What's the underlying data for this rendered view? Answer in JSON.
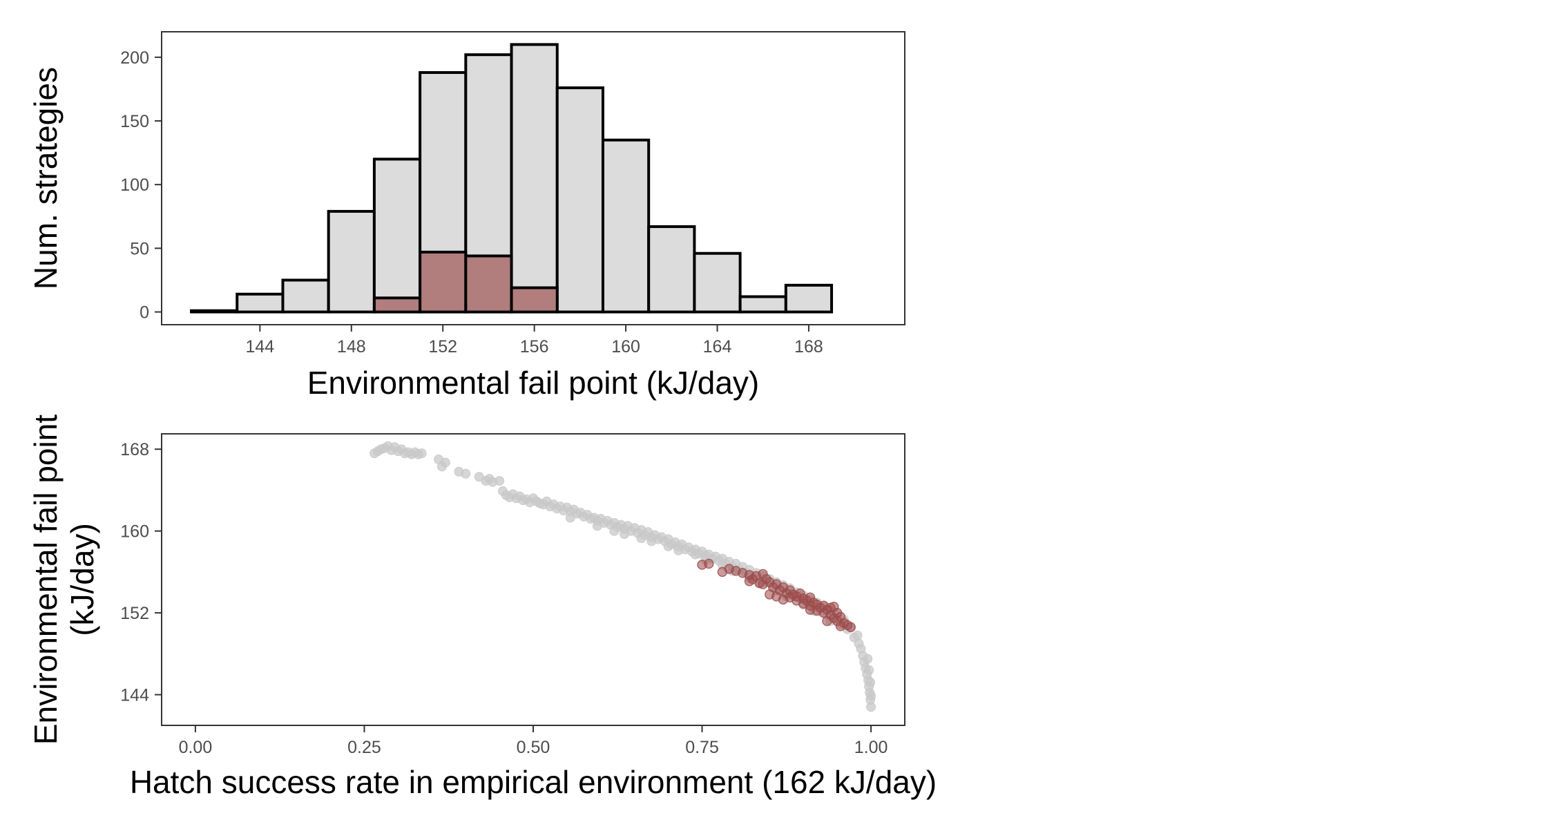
{
  "colors": {
    "bar_fill": "#dcdcdc",
    "bar_outline": "#000000",
    "highlight": "#b17d7d",
    "scatter_grey": "#c8c8c8",
    "scatter_red": "#9e4a4a",
    "panel_border": "#333333"
  },
  "chart_data": [
    {
      "type": "bar",
      "subtype": "histogram",
      "xlabel": "Environmental fail point (kJ/day)",
      "ylabel": "Num. strategies",
      "xlim": [
        139.7,
        172.2
      ],
      "ylim": [
        -10,
        220
      ],
      "bin_width": 2,
      "bin_edges": [
        141,
        143,
        145,
        147,
        149,
        151,
        153,
        155,
        157,
        159,
        161,
        163,
        165,
        167,
        169
      ],
      "series": [
        {
          "values": [
            1,
            14,
            25,
            79,
            120,
            188,
            202,
            210,
            176,
            135,
            67,
            46,
            12,
            21
          ]
        },
        {
          "values": [
            0,
            0,
            0,
            0,
            11,
            47,
            44,
            19,
            0,
            0,
            0,
            0,
            0,
            0
          ]
        }
      ],
      "xticks": [
        144,
        148,
        152,
        156,
        160,
        164,
        168
      ],
      "yticks": [
        0,
        50,
        100,
        150,
        200
      ],
      "grid": false
    },
    {
      "type": "scatter",
      "xlabel": "Hatch success rate in empirical environment (162 kJ/day)",
      "ylabel": "Environmental fail point\n(kJ/day)",
      "xlim": [
        -0.05,
        1.05
      ],
      "ylim": [
        141.0,
        169.5
      ],
      "xticks": [
        "0.00",
        "0.25",
        "0.50",
        "0.75",
        "1.00"
      ],
      "yticks": [
        144,
        152,
        160,
        168
      ],
      "grid": false,
      "series": [
        {
          "points": [
            [
              0.265,
              167.6
            ],
            [
              0.27,
              167.8
            ],
            [
              0.275,
              168.0
            ],
            [
              0.28,
              168.1
            ],
            [
              0.285,
              168.3
            ],
            [
              0.29,
              167.9
            ],
            [
              0.295,
              168.2
            ],
            [
              0.3,
              167.8
            ],
            [
              0.305,
              168.0
            ],
            [
              0.31,
              167.6
            ],
            [
              0.315,
              167.7
            ],
            [
              0.32,
              167.5
            ],
            [
              0.325,
              167.7
            ],
            [
              0.33,
              167.5
            ],
            [
              0.335,
              167.6
            ],
            [
              0.36,
              167.0
            ],
            [
              0.37,
              166.7
            ],
            [
              0.365,
              166.3
            ],
            [
              0.39,
              165.8
            ],
            [
              0.4,
              165.6
            ],
            [
              0.42,
              165.3
            ],
            [
              0.43,
              164.9
            ],
            [
              0.435,
              165.1
            ],
            [
              0.44,
              164.8
            ],
            [
              0.45,
              164.9
            ],
            [
              0.455,
              163.9
            ],
            [
              0.46,
              163.5
            ],
            [
              0.465,
              163.3
            ],
            [
              0.47,
              163.6
            ],
            [
              0.475,
              163.2
            ],
            [
              0.48,
              163.4
            ],
            [
              0.485,
              163.0
            ],
            [
              0.49,
              163.1
            ],
            [
              0.495,
              162.8
            ],
            [
              0.5,
              163.2
            ],
            [
              0.505,
              162.9
            ],
            [
              0.51,
              162.7
            ],
            [
              0.515,
              162.6
            ],
            [
              0.52,
              162.9
            ],
            [
              0.525,
              162.4
            ],
            [
              0.53,
              162.6
            ],
            [
              0.535,
              162.2
            ],
            [
              0.54,
              162.4
            ],
            [
              0.545,
              162.0
            ],
            [
              0.55,
              162.3
            ],
            [
              0.555,
              161.9
            ],
            [
              0.56,
              162.1
            ],
            [
              0.565,
              161.7
            ],
            [
              0.57,
              161.8
            ],
            [
              0.575,
              161.4
            ],
            [
              0.58,
              161.6
            ],
            [
              0.585,
              161.2
            ],
            [
              0.59,
              161.3
            ],
            [
              0.595,
              161.0
            ],
            [
              0.6,
              161.2
            ],
            [
              0.605,
              160.8
            ],
            [
              0.61,
              161.0
            ],
            [
              0.615,
              160.6
            ],
            [
              0.62,
              160.8
            ],
            [
              0.625,
              160.4
            ],
            [
              0.63,
              160.6
            ],
            [
              0.635,
              160.2
            ],
            [
              0.64,
              160.5
            ],
            [
              0.645,
              160.0
            ],
            [
              0.65,
              160.3
            ],
            [
              0.655,
              159.8
            ],
            [
              0.66,
              160.1
            ],
            [
              0.665,
              159.6
            ],
            [
              0.67,
              159.9
            ],
            [
              0.675,
              159.4
            ],
            [
              0.68,
              159.6
            ],
            [
              0.685,
              159.2
            ],
            [
              0.69,
              159.4
            ],
            [
              0.695,
              159.0
            ],
            [
              0.7,
              159.2
            ],
            [
              0.705,
              158.7
            ],
            [
              0.71,
              158.9
            ],
            [
              0.715,
              158.5
            ],
            [
              0.72,
              158.7
            ],
            [
              0.725,
              158.2
            ],
            [
              0.73,
              158.4
            ],
            [
              0.735,
              158.0
            ],
            [
              0.74,
              158.2
            ],
            [
              0.745,
              157.8
            ],
            [
              0.75,
              158.0
            ],
            [
              0.755,
              157.6
            ],
            [
              0.76,
              157.7
            ],
            [
              0.765,
              157.3
            ],
            [
              0.77,
              157.5
            ],
            [
              0.775,
              157.1
            ],
            [
              0.78,
              157.3
            ],
            [
              0.785,
              156.8
            ],
            [
              0.79,
              157.0
            ],
            [
              0.795,
              156.5
            ],
            [
              0.8,
              156.8
            ],
            [
              0.805,
              156.2
            ],
            [
              0.81,
              156.5
            ],
            [
              0.815,
              155.9
            ],
            [
              0.82,
              156.2
            ],
            [
              0.825,
              155.6
            ],
            [
              0.83,
              155.9
            ],
            [
              0.835,
              155.3
            ],
            [
              0.84,
              155.6
            ],
            [
              0.845,
              155.0
            ],
            [
              0.85,
              155.3
            ],
            [
              0.855,
              154.7
            ],
            [
              0.86,
              155.0
            ],
            [
              0.865,
              154.4
            ],
            [
              0.87,
              154.7
            ],
            [
              0.875,
              154.0
            ],
            [
              0.88,
              154.4
            ],
            [
              0.885,
              153.7
            ],
            [
              0.89,
              154.0
            ],
            [
              0.895,
              153.4
            ],
            [
              0.9,
              153.7
            ],
            [
              0.905,
              153.0
            ],
            [
              0.91,
              153.3
            ],
            [
              0.915,
              152.6
            ],
            [
              0.92,
              153.0
            ],
            [
              0.925,
              152.2
            ],
            [
              0.93,
              152.6
            ],
            [
              0.935,
              151.8
            ],
            [
              0.94,
              152.2
            ],
            [
              0.945,
              151.4
            ],
            [
              0.95,
              151.8
            ],
            [
              0.955,
              150.9
            ],
            [
              0.96,
              151.3
            ],
            [
              0.965,
              150.4
            ],
            [
              0.97,
              150.6
            ],
            [
              0.975,
              149.6
            ],
            [
              0.98,
              149.8
            ],
            [
              0.982,
              149.0
            ],
            [
              0.985,
              148.5
            ],
            [
              0.988,
              147.8
            ],
            [
              0.99,
              147.2
            ],
            [
              0.992,
              146.6
            ],
            [
              0.994,
              146.0
            ],
            [
              0.996,
              145.4
            ],
            [
              0.997,
              144.8
            ],
            [
              0.998,
              144.2
            ],
            [
              0.999,
              143.5
            ],
            [
              1.0,
              142.8
            ],
            [
              1.0,
              143.9
            ],
            [
              0.999,
              145.2
            ],
            [
              0.997,
              146.4
            ],
            [
              0.995,
              147.5
            ],
            [
              0.62,
              160.0
            ],
            [
              0.66,
              159.3
            ],
            [
              0.7,
              158.5
            ],
            [
              0.74,
              157.7
            ],
            [
              0.78,
              156.7
            ],
            [
              0.82,
              155.4
            ],
            [
              0.86,
              154.2
            ],
            [
              0.9,
              152.8
            ],
            [
              0.94,
              151.2
            ],
            [
              0.555,
              161.3
            ],
            [
              0.595,
              160.5
            ],
            [
              0.635,
              159.7
            ],
            [
              0.675,
              159.0
            ],
            [
              0.715,
              158.1
            ],
            [
              0.755,
              157.2
            ],
            [
              0.795,
              156.1
            ],
            [
              0.835,
              154.9
            ],
            [
              0.875,
              153.6
            ],
            [
              0.915,
              152.2
            ]
          ]
        },
        {
          "points": [
            [
              0.75,
              156.7
            ],
            [
              0.76,
              156.8
            ],
            [
              0.78,
              156.0
            ],
            [
              0.79,
              156.3
            ],
            [
              0.8,
              156.1
            ],
            [
              0.81,
              155.9
            ],
            [
              0.82,
              155.7
            ],
            [
              0.82,
              155.1
            ],
            [
              0.825,
              155.3
            ],
            [
              0.83,
              155.6
            ],
            [
              0.835,
              154.9
            ],
            [
              0.84,
              155.8
            ],
            [
              0.84,
              154.8
            ],
            [
              0.845,
              155.3
            ],
            [
              0.85,
              155.0
            ],
            [
              0.855,
              154.5
            ],
            [
              0.86,
              154.8
            ],
            [
              0.865,
              154.2
            ],
            [
              0.87,
              154.5
            ],
            [
              0.875,
              153.9
            ],
            [
              0.88,
              154.2
            ],
            [
              0.88,
              153.5
            ],
            [
              0.885,
              153.8
            ],
            [
              0.89,
              153.6
            ],
            [
              0.89,
              153.2
            ],
            [
              0.895,
              153.9
            ],
            [
              0.9,
              153.4
            ],
            [
              0.9,
              152.9
            ],
            [
              0.905,
              153.2
            ],
            [
              0.91,
              153.5
            ],
            [
              0.91,
              152.7
            ],
            [
              0.915,
              153.0
            ],
            [
              0.92,
              152.8
            ],
            [
              0.92,
              152.2
            ],
            [
              0.925,
              152.5
            ],
            [
              0.93,
              152.0
            ],
            [
              0.93,
              152.7
            ],
            [
              0.935,
              152.3
            ],
            [
              0.94,
              151.8
            ],
            [
              0.94,
              152.5
            ],
            [
              0.945,
              151.5
            ],
            [
              0.95,
              152.0
            ],
            [
              0.95,
              151.2
            ],
            [
              0.955,
              151.6
            ],
            [
              0.96,
              151.0
            ],
            [
              0.965,
              150.8
            ],
            [
              0.97,
              150.6
            ],
            [
              0.91,
              152.3
            ],
            [
              0.87,
              153.3
            ],
            [
              0.85,
              153.8
            ],
            [
              0.86,
              153.6
            ],
            [
              0.935,
              151.2
            ],
            [
              0.945,
              152.6
            ],
            [
              0.955,
              150.7
            ]
          ]
        }
      ]
    }
  ]
}
